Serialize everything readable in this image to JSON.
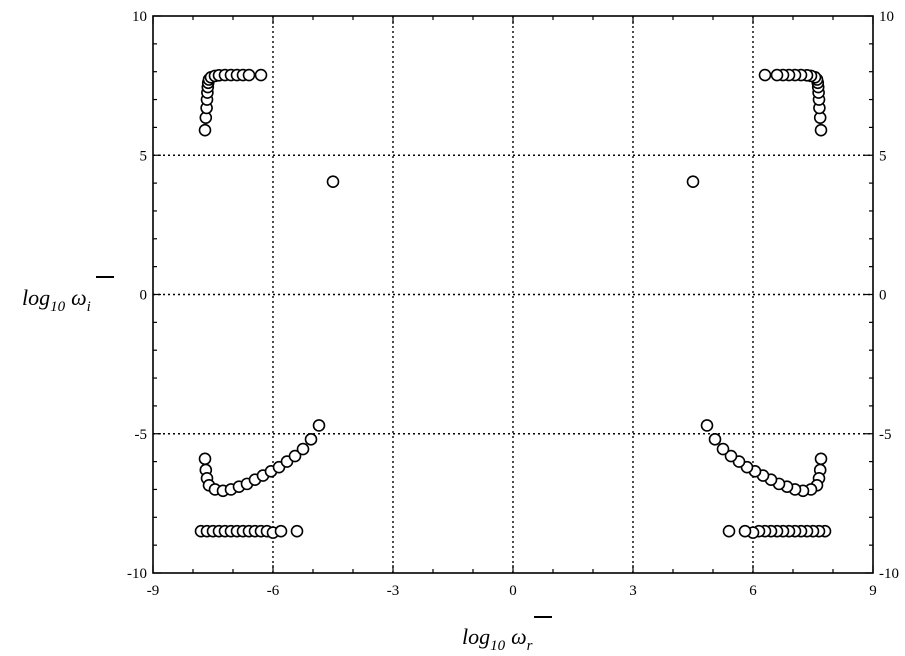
{
  "chart_data": {
    "type": "scatter",
    "xlim": [
      -9,
      9
    ],
    "ylim": [
      -10,
      10
    ],
    "x_ticks": [
      -9,
      -6,
      -3,
      0,
      3,
      6,
      9
    ],
    "y_ticks": [
      -10,
      -5,
      0,
      5,
      10
    ],
    "x_tick_labels": [
      "-9",
      "-6",
      "-3",
      "0",
      "3",
      "6",
      "9"
    ],
    "y_tick_labels_left": [
      "-10",
      "-5",
      "0",
      "5",
      "10"
    ],
    "y_tick_labels_right": [
      "-10",
      "-5",
      "0",
      "5",
      "10"
    ],
    "grid": "dotted at major ticks",
    "xlabel": {
      "base": "log",
      "subscript": "10",
      "symbol": "ω",
      "index": "r"
    },
    "ylabel": {
      "base": "log",
      "subscript": "10",
      "symbol": "ω",
      "index": "i"
    },
    "series": [
      {
        "marker": "open-circle",
        "points": [
          [
            -7.7,
            5.9
          ],
          [
            -7.68,
            6.35
          ],
          [
            -7.66,
            6.7
          ],
          [
            -7.65,
            7.0
          ],
          [
            -7.64,
            7.25
          ],
          [
            -7.63,
            7.45
          ],
          [
            -7.62,
            7.6
          ],
          [
            -7.6,
            7.72
          ],
          [
            -7.55,
            7.8
          ],
          [
            -7.45,
            7.85
          ],
          [
            -7.35,
            7.87
          ],
          [
            -7.2,
            7.88
          ],
          [
            -7.05,
            7.88
          ],
          [
            -6.9,
            7.88
          ],
          [
            -6.75,
            7.88
          ],
          [
            -6.6,
            7.88
          ],
          [
            -6.3,
            7.88
          ],
          [
            7.7,
            5.9
          ],
          [
            7.68,
            6.35
          ],
          [
            7.66,
            6.7
          ],
          [
            7.65,
            7.0
          ],
          [
            7.64,
            7.25
          ],
          [
            7.63,
            7.45
          ],
          [
            7.62,
            7.6
          ],
          [
            7.6,
            7.72
          ],
          [
            7.55,
            7.8
          ],
          [
            7.45,
            7.85
          ],
          [
            7.35,
            7.87
          ],
          [
            7.2,
            7.88
          ],
          [
            7.05,
            7.88
          ],
          [
            6.9,
            7.88
          ],
          [
            6.75,
            7.88
          ],
          [
            6.6,
            7.88
          ],
          [
            6.3,
            7.88
          ],
          [
            -4.5,
            4.05
          ],
          [
            4.5,
            4.05
          ],
          [
            -7.7,
            -5.9
          ],
          [
            -7.68,
            -6.3
          ],
          [
            -7.65,
            -6.6
          ],
          [
            -7.6,
            -6.85
          ],
          [
            -7.45,
            -7.0
          ],
          [
            -7.25,
            -7.05
          ],
          [
            -7.05,
            -7.0
          ],
          [
            -6.85,
            -6.9
          ],
          [
            -6.65,
            -6.8
          ],
          [
            -6.45,
            -6.65
          ],
          [
            -6.25,
            -6.5
          ],
          [
            -6.05,
            -6.35
          ],
          [
            -5.85,
            -6.2
          ],
          [
            -5.65,
            -6.0
          ],
          [
            -5.45,
            -5.8
          ],
          [
            -5.25,
            -5.55
          ],
          [
            -5.05,
            -5.2
          ],
          [
            -4.85,
            -4.7
          ],
          [
            7.7,
            -5.9
          ],
          [
            7.68,
            -6.3
          ],
          [
            7.65,
            -6.6
          ],
          [
            7.6,
            -6.85
          ],
          [
            7.45,
            -7.0
          ],
          [
            7.25,
            -7.05
          ],
          [
            7.05,
            -7.0
          ],
          [
            6.85,
            -6.9
          ],
          [
            6.65,
            -6.8
          ],
          [
            6.45,
            -6.65
          ],
          [
            6.25,
            -6.5
          ],
          [
            6.05,
            -6.35
          ],
          [
            5.85,
            -6.2
          ],
          [
            5.65,
            -6.0
          ],
          [
            5.45,
            -5.8
          ],
          [
            5.25,
            -5.55
          ],
          [
            5.05,
            -5.2
          ],
          [
            4.85,
            -4.7
          ],
          [
            -7.8,
            -8.5
          ],
          [
            -7.65,
            -8.5
          ],
          [
            -7.5,
            -8.5
          ],
          [
            -7.35,
            -8.5
          ],
          [
            -7.2,
            -8.5
          ],
          [
            -7.05,
            -8.5
          ],
          [
            -6.9,
            -8.5
          ],
          [
            -6.75,
            -8.5
          ],
          [
            -6.6,
            -8.5
          ],
          [
            -6.45,
            -8.5
          ],
          [
            -6.3,
            -8.5
          ],
          [
            -6.15,
            -8.5
          ],
          [
            -6.0,
            -8.55
          ],
          [
            -5.8,
            -8.5
          ],
          [
            -5.4,
            -8.5
          ],
          [
            7.8,
            -8.5
          ],
          [
            7.65,
            -8.5
          ],
          [
            7.5,
            -8.5
          ],
          [
            7.35,
            -8.5
          ],
          [
            7.2,
            -8.5
          ],
          [
            7.05,
            -8.5
          ],
          [
            6.9,
            -8.5
          ],
          [
            6.75,
            -8.5
          ],
          [
            6.6,
            -8.5
          ],
          [
            6.45,
            -8.5
          ],
          [
            6.3,
            -8.5
          ],
          [
            6.15,
            -8.5
          ],
          [
            6.0,
            -8.55
          ],
          [
            5.8,
            -8.5
          ],
          [
            5.4,
            -8.5
          ]
        ]
      }
    ]
  }
}
